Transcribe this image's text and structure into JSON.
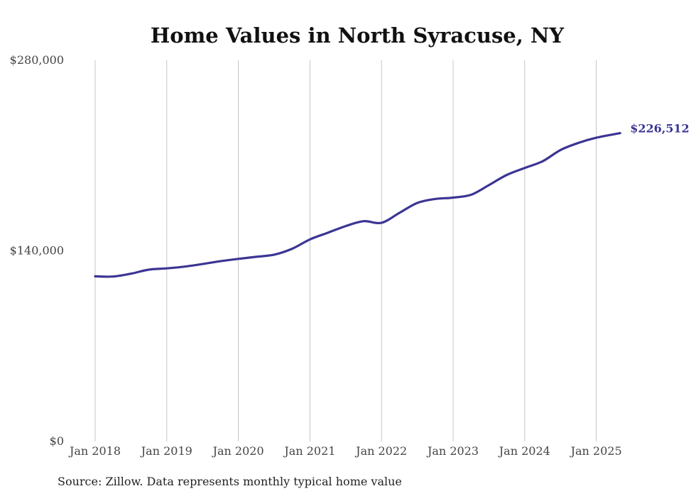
{
  "chart_data": {
    "type": "line",
    "title": "Home Values in North Syracuse, NY",
    "xlabel": "",
    "ylabel": "",
    "x_ticks": [
      "Jan 2018",
      "Jan 2019",
      "Jan 2020",
      "Jan 2021",
      "Jan 2022",
      "Jan 2023",
      "Jan 2024",
      "Jan 2025"
    ],
    "y_ticks": [
      {
        "value": 0,
        "label": "$0"
      },
      {
        "value": 140000,
        "label": "$140,000"
      },
      {
        "value": 280000,
        "label": "$280,000"
      }
    ],
    "ylim": [
      0,
      280000
    ],
    "xlim": [
      "2018-01",
      "2025-05"
    ],
    "grid": {
      "vertical": true,
      "horizontal": false
    },
    "series": [
      {
        "color": "#3b3594",
        "points": [
          {
            "x": "2018-01",
            "y": 121300
          },
          {
            "x": "2018-04",
            "y": 121100
          },
          {
            "x": "2018-07",
            "y": 123200
          },
          {
            "x": "2018-10",
            "y": 126200
          },
          {
            "x": "2019-01",
            "y": 127100
          },
          {
            "x": "2019-04",
            "y": 128400
          },
          {
            "x": "2019-07",
            "y": 130300
          },
          {
            "x": "2019-10",
            "y": 132400
          },
          {
            "x": "2020-01",
            "y": 134100
          },
          {
            "x": "2020-04",
            "y": 135600
          },
          {
            "x": "2020-07",
            "y": 137200
          },
          {
            "x": "2020-10",
            "y": 141500
          },
          {
            "x": "2021-01",
            "y": 148400
          },
          {
            "x": "2021-04",
            "y": 153300
          },
          {
            "x": "2021-07",
            "y": 158200
          },
          {
            "x": "2021-10",
            "y": 161800
          },
          {
            "x": "2022-01",
            "y": 160600
          },
          {
            "x": "2022-04",
            "y": 167900
          },
          {
            "x": "2022-07",
            "y": 175200
          },
          {
            "x": "2022-10",
            "y": 178100
          },
          {
            "x": "2023-01",
            "y": 179100
          },
          {
            "x": "2023-04",
            "y": 181200
          },
          {
            "x": "2023-07",
            "y": 188300
          },
          {
            "x": "2023-10",
            "y": 195800
          },
          {
            "x": "2024-01",
            "y": 200900
          },
          {
            "x": "2024-04",
            "y": 205800
          },
          {
            "x": "2024-07",
            "y": 214100
          },
          {
            "x": "2024-10",
            "y": 219300
          },
          {
            "x": "2025-01",
            "y": 223100
          },
          {
            "x": "2025-05",
            "y": 226512
          }
        ]
      }
    ],
    "end_label": "$226,512",
    "source": "Source: Zillow. Data represents monthly typical home value"
  }
}
